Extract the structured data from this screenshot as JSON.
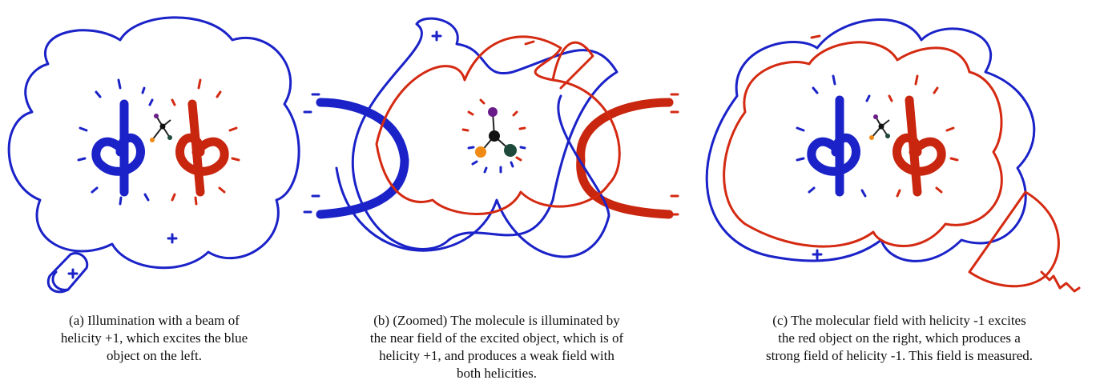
{
  "figure": {
    "captions": [
      {
        "lines": [
          "(a) Illumination with a beam of",
          "helicity +1, which excites the blue",
          "object on the left."
        ]
      },
      {
        "lines": [
          "(b) (Zoomed) The molecule is illuminated by",
          "the near field of the excited object, which is of",
          "helicity +1, and produces a weak field with",
          "both helicities."
        ]
      },
      {
        "lines": [
          "(c) The molecular field with helicity -1 excites",
          "the red object on the right, which produces a",
          "strong field of helicity -1. This field is measured."
        ]
      }
    ]
  }
}
